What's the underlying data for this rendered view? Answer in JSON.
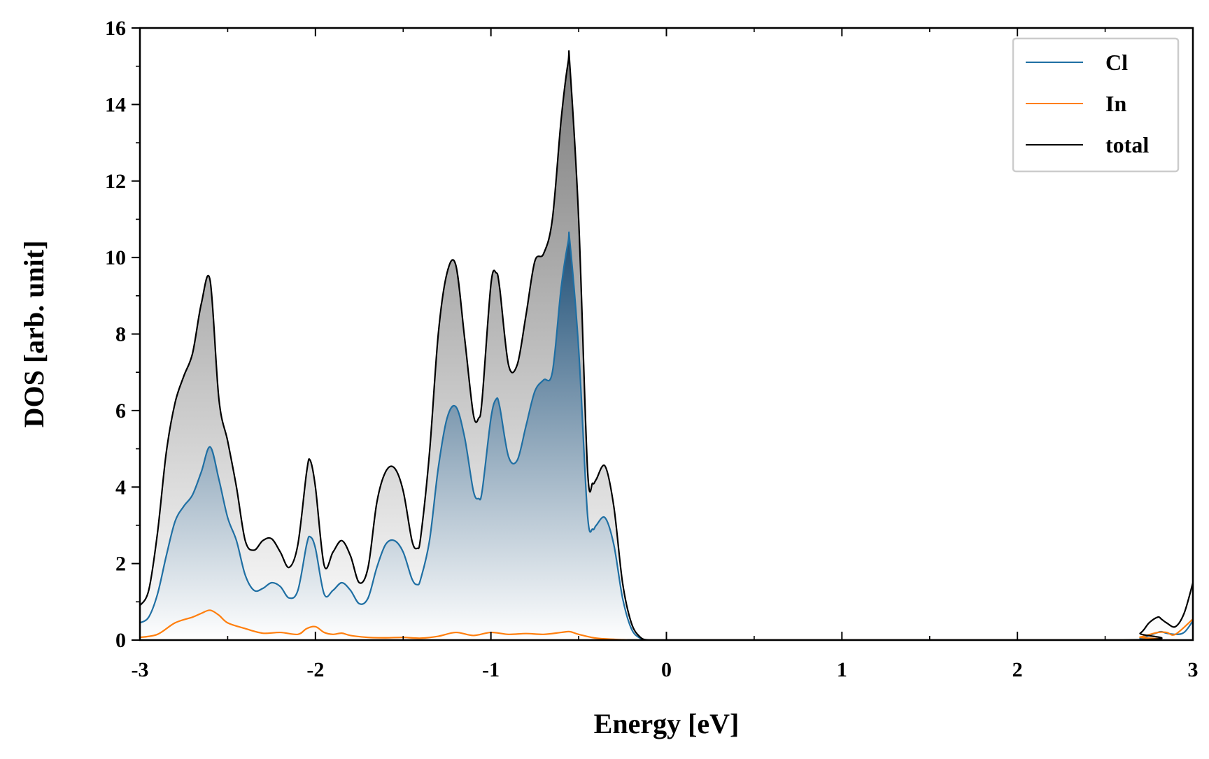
{
  "colors": {
    "cl": "#1f6fa3",
    "in": "#ff7f0e",
    "total": "#000000",
    "total_fill": "#7a7a7a",
    "cl_fill": "#1c4d75",
    "legend_border": "#cccccc"
  },
  "chart_data": {
    "type": "area",
    "title": "",
    "xlabel": "Energy [eV]",
    "ylabel": "DOS [arb. unit]",
    "xlim": [
      -3,
      3
    ],
    "ylim": [
      0,
      16
    ],
    "xticks": [
      -3,
      -2,
      -1,
      0,
      1,
      2,
      3
    ],
    "xtick_labels": [
      "-3",
      "-2",
      "-1",
      "0",
      "1",
      "2",
      "3"
    ],
    "yticks": [
      0,
      2,
      4,
      6,
      8,
      10,
      12,
      14,
      16
    ],
    "ytick_labels": [
      "0",
      "2",
      "4",
      "6",
      "8",
      "10",
      "12",
      "14",
      "16"
    ],
    "grid": false,
    "legend_position": "top-right",
    "legend": [
      "Cl",
      "In",
      "total"
    ],
    "series": [
      {
        "name": "Cl",
        "color": "#1f6fa3",
        "x": [
          -3.0,
          -2.95,
          -2.9,
          -2.85,
          -2.8,
          -2.75,
          -2.7,
          -2.65,
          -2.6,
          -2.55,
          -2.5,
          -2.45,
          -2.4,
          -2.35,
          -2.3,
          -2.25,
          -2.2,
          -2.15,
          -2.1,
          -2.05,
          -2.03,
          -2.0,
          -1.95,
          -1.9,
          -1.85,
          -1.8,
          -1.75,
          -1.7,
          -1.65,
          -1.6,
          -1.55,
          -1.5,
          -1.45,
          -1.42,
          -1.4,
          -1.35,
          -1.3,
          -1.25,
          -1.2,
          -1.15,
          -1.1,
          -1.07,
          -1.05,
          -1.0,
          -0.97,
          -0.95,
          -0.9,
          -0.85,
          -0.8,
          -0.75,
          -0.7,
          -0.65,
          -0.6,
          -0.56,
          -0.55,
          -0.5,
          -0.45,
          -0.42,
          -0.4,
          -0.35,
          -0.3,
          -0.25,
          -0.2,
          -0.15,
          -0.1,
          0.0,
          2.6,
          2.7,
          2.75,
          2.8,
          2.82,
          2.85,
          2.9,
          2.95,
          3.0
        ],
        "y": [
          0.45,
          0.6,
          1.2,
          2.2,
          3.1,
          3.5,
          3.8,
          4.4,
          5.05,
          4.2,
          3.2,
          2.6,
          1.7,
          1.3,
          1.35,
          1.5,
          1.4,
          1.1,
          1.3,
          2.5,
          2.7,
          2.4,
          1.2,
          1.3,
          1.5,
          1.3,
          0.95,
          1.1,
          1.9,
          2.5,
          2.6,
          2.3,
          1.6,
          1.45,
          1.6,
          2.6,
          4.5,
          5.8,
          6.1,
          5.3,
          3.9,
          3.7,
          3.9,
          5.8,
          6.3,
          6.1,
          4.8,
          4.7,
          5.6,
          6.5,
          6.8,
          7.0,
          9.2,
          10.4,
          10.4,
          7.6,
          3.3,
          2.9,
          3.0,
          3.2,
          2.5,
          1.1,
          0.3,
          0.05,
          0.0,
          0.0,
          0.0,
          0.05,
          0.12,
          0.2,
          0.22,
          0.18,
          0.15,
          0.2,
          0.5
        ]
      },
      {
        "name": "In",
        "color": "#ff7f0e",
        "x": [
          -3.0,
          -2.9,
          -2.8,
          -2.7,
          -2.65,
          -2.6,
          -2.55,
          -2.5,
          -2.4,
          -2.3,
          -2.2,
          -2.1,
          -2.05,
          -2.0,
          -1.95,
          -1.9,
          -1.85,
          -1.8,
          -1.7,
          -1.6,
          -1.5,
          -1.4,
          -1.3,
          -1.2,
          -1.1,
          -1.0,
          -0.9,
          -0.8,
          -0.7,
          -0.6,
          -0.55,
          -0.5,
          -0.4,
          -0.3,
          -0.2,
          -0.1,
          0.0,
          2.6,
          2.7,
          2.8,
          2.85,
          2.9,
          3.0
        ],
        "y": [
          0.07,
          0.15,
          0.45,
          0.6,
          0.7,
          0.78,
          0.65,
          0.45,
          0.3,
          0.18,
          0.2,
          0.15,
          0.3,
          0.35,
          0.2,
          0.15,
          0.18,
          0.12,
          0.07,
          0.06,
          0.07,
          0.05,
          0.1,
          0.2,
          0.12,
          0.2,
          0.15,
          0.17,
          0.15,
          0.2,
          0.22,
          0.15,
          0.05,
          0.02,
          0.0,
          0.0,
          0.0,
          0.0,
          0.08,
          0.2,
          0.2,
          0.15,
          0.55
        ]
      },
      {
        "name": "total",
        "color": "#000000",
        "x": [
          -3.0,
          -2.95,
          -2.9,
          -2.85,
          -2.8,
          -2.75,
          -2.7,
          -2.65,
          -2.6,
          -2.55,
          -2.5,
          -2.45,
          -2.4,
          -2.35,
          -2.3,
          -2.25,
          -2.2,
          -2.15,
          -2.1,
          -2.05,
          -2.03,
          -2.0,
          -1.95,
          -1.9,
          -1.85,
          -1.8,
          -1.75,
          -1.7,
          -1.65,
          -1.6,
          -1.55,
          -1.5,
          -1.45,
          -1.42,
          -1.4,
          -1.35,
          -1.3,
          -1.25,
          -1.2,
          -1.15,
          -1.1,
          -1.07,
          -1.05,
          -1.0,
          -0.97,
          -0.95,
          -0.9,
          -0.85,
          -0.8,
          -0.75,
          -0.7,
          -0.65,
          -0.6,
          -0.56,
          -0.55,
          -0.5,
          -0.45,
          -0.42,
          -0.4,
          -0.35,
          -0.3,
          -0.25,
          -0.2,
          -0.15,
          -0.1,
          0.0,
          2.6,
          2.7,
          2.75,
          2.8,
          2.82,
          2.85,
          2.9,
          2.95,
          3.0
        ],
        "y": [
          0.9,
          1.3,
          2.8,
          4.9,
          6.2,
          6.9,
          7.5,
          8.8,
          9.4,
          6.3,
          5.2,
          4.0,
          2.6,
          2.35,
          2.6,
          2.65,
          2.3,
          1.9,
          2.5,
          4.4,
          4.7,
          4.0,
          1.95,
          2.3,
          2.6,
          2.2,
          1.5,
          1.9,
          3.6,
          4.4,
          4.5,
          3.9,
          2.6,
          2.4,
          2.7,
          4.9,
          8.0,
          9.6,
          9.8,
          7.9,
          5.9,
          5.8,
          6.3,
          9.3,
          9.6,
          9.2,
          7.2,
          7.2,
          8.5,
          9.9,
          10.1,
          11.0,
          13.6,
          15.1,
          15.0,
          11.0,
          4.5,
          4.1,
          4.2,
          4.55,
          3.5,
          1.5,
          0.45,
          0.08,
          0.0,
          0.0,
          0.0,
          0.18,
          0.45,
          0.6,
          0.55,
          0.45,
          0.35,
          0.7,
          1.5
        ]
      }
    ]
  }
}
